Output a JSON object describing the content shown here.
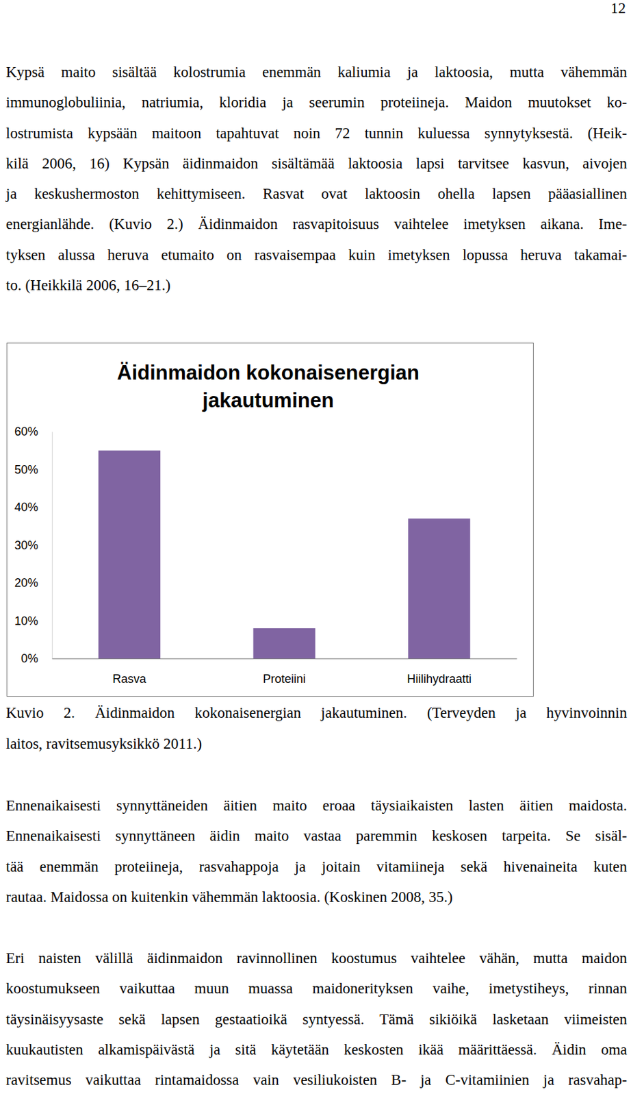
{
  "page_number": "12",
  "paragraphs_before": [
    [
      "Kypsä maito sisältää kolostrumia enemmän kaliumia ja laktoosia, mutta vähemmän",
      "immunoglobuliinia, natriumia, kloridia ja seerumin proteiineja. Maidon muutokset ko-",
      "lostrumista kypsään maitoon tapahtuvat noin 72 tunnin kuluessa synnytyksestä. (Heik-",
      "kilä 2006, 16) Kypsän äidinmaidon sisältämää laktoosia lapsi tarvitsee kasvun, aivojen",
      "ja keskushermoston kehittymiseen. Rasvat ovat laktoosin ohella lapsen pääasiallinen",
      "energianlähde. (Kuvio 2.) Äidinmaidon rasvapitoisuus vaihtelee imetyksen aikana. Ime-",
      "tyksen alussa heruva etumaito on rasvaisempaa kuin imetyksen lopussa heruva takamai-",
      "to. (Heikkilä 2006, 16–21.)"
    ]
  ],
  "chart_data": {
    "type": "bar",
    "title": "Äidinmaidon kokonaisenergian jakautuminen",
    "categories": [
      "Rasva",
      "Proteiini",
      "Hiilihydraatti"
    ],
    "values": [
      55,
      8,
      37
    ],
    "color": "#8064a2",
    "ylim": [
      0,
      60
    ],
    "yticks": [
      {
        "value": 0,
        "label": "0%"
      },
      {
        "value": 10,
        "label": "10%"
      },
      {
        "value": 20,
        "label": "20%"
      },
      {
        "value": 30,
        "label": "30%"
      },
      {
        "value": 40,
        "label": "40%"
      },
      {
        "value": 50,
        "label": "50%"
      },
      {
        "value": 60,
        "label": "60%"
      }
    ],
    "grid": false
  },
  "caption": [
    "Kuvio 2. Äidinmaidon kokonaisenergian jakautuminen. (Terveyden ja hyvinvoinnin",
    "laitos, ravitsemusyksikkö 2011.)"
  ],
  "paragraphs_after": [
    [
      "Ennenaikaisesti synnyttäneiden äitien maito eroaa täysiaikaisten lasten äitien maidosta.",
      "Ennenaikaisesti synnyttäneen äidin maito vastaa paremmin keskosen tarpeita. Se sisäl-",
      "tää enemmän proteiineja, rasvahappoja ja joitain vitamiineja sekä hivenaineita kuten",
      "rautaa. Maidossa on kuitenkin vähemmän laktoosia. (Koskinen 2008, 35.)"
    ],
    [
      "Eri naisten välillä äidinmaidon ravinnollinen koostumus vaihtelee vähän, mutta maidon",
      "koostumukseen vaikuttaa muun muassa maidonerityksen vaihe, imetystiheys, rinnan",
      "täysinäisyysaste sekä lapsen gestaatioikä syntyessä. Tämä sikiöikä lasketaan viimeisten",
      "kuukautisten alkamispäivästä ja sitä käytetään keskosten ikää määrittäessä. Äidin oma",
      "ravitsemus vaikuttaa rintamaidossa vain vesiliukoisten B- ja C-vitamiinien ja rasvahap-"
    ]
  ]
}
